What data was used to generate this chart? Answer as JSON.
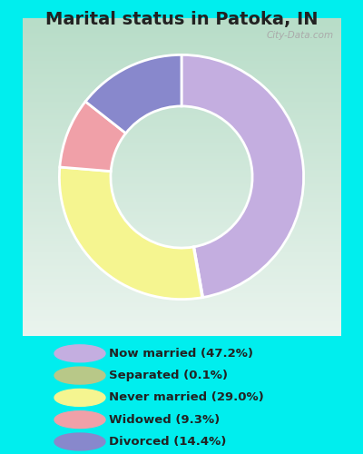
{
  "title": "Marital status in Patoka, IN",
  "title_fontsize": 14,
  "title_fontweight": "bold",
  "background_color": "#00EEEE",
  "chart_bg_top": "#c8e8d0",
  "chart_bg_bottom": "#e8f5e8",
  "watermark": "City-Data.com",
  "slices": [
    47.2,
    0.1,
    29.0,
    9.3,
    14.4
  ],
  "labels": [
    "Now married (47.2%)",
    "Separated (0.1%)",
    "Never married (29.0%)",
    "Widowed (9.3%)",
    "Divorced (14.4%)"
  ],
  "colors": [
    "#c4aee0",
    "#a8c878",
    "#f5f590",
    "#f0a0a8",
    "#8888cc"
  ],
  "legend_colors": [
    "#c4aee0",
    "#b8c888",
    "#f5f590",
    "#f0a0a8",
    "#8888cc"
  ],
  "startangle": 90,
  "donut_width": 0.42
}
